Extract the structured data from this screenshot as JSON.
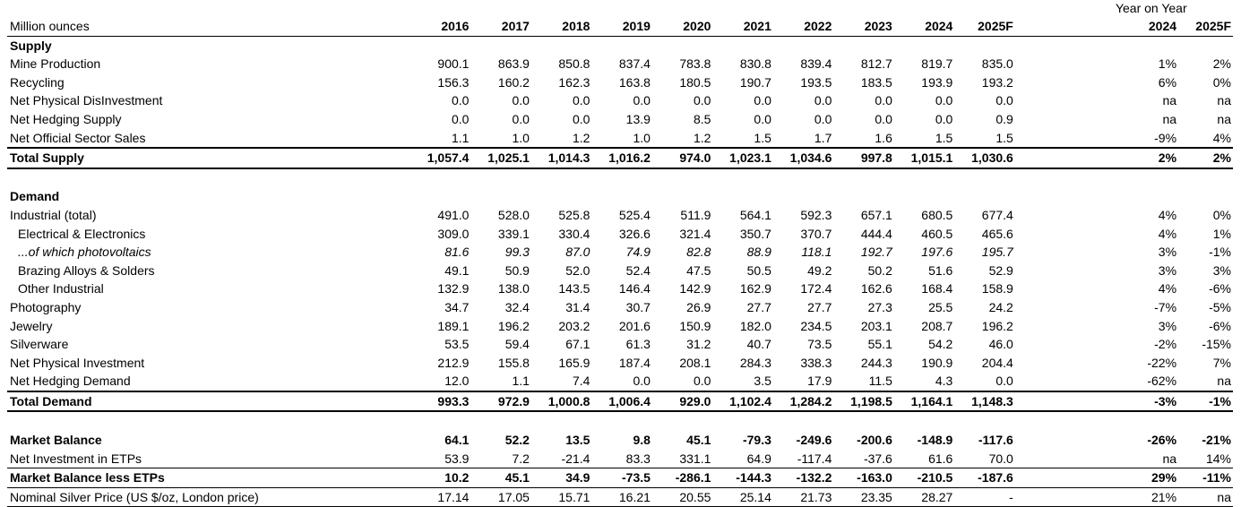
{
  "header": {
    "unit_label": "Million ounces",
    "yoy_label": "Year on Year",
    "years": [
      "2016",
      "2017",
      "2018",
      "2019",
      "2020",
      "2021",
      "2022",
      "2023",
      "2024",
      "2025F"
    ],
    "yoy_years": [
      "2024",
      "2025F"
    ]
  },
  "supply": {
    "section_label": "Supply",
    "rows": [
      {
        "label": "Mine Production",
        "values": [
          "900.1",
          "863.9",
          "850.8",
          "837.4",
          "783.8",
          "830.8",
          "839.4",
          "812.7",
          "819.7",
          "835.0"
        ],
        "yoy": [
          "1%",
          "2%"
        ]
      },
      {
        "label": "Recycling",
        "values": [
          "156.3",
          "160.2",
          "162.3",
          "163.8",
          "180.5",
          "190.7",
          "193.5",
          "183.5",
          "193.9",
          "193.2"
        ],
        "yoy": [
          "6%",
          "0%"
        ]
      },
      {
        "label": "Net Physical DisInvestment",
        "values": [
          "0.0",
          "0.0",
          "0.0",
          "0.0",
          "0.0",
          "0.0",
          "0.0",
          "0.0",
          "0.0",
          "0.0"
        ],
        "yoy": [
          "na",
          "na"
        ]
      },
      {
        "label": "Net Hedging Supply",
        "values": [
          "0.0",
          "0.0",
          "0.0",
          "13.9",
          "8.5",
          "0.0",
          "0.0",
          "0.0",
          "0.0",
          "0.9"
        ],
        "yoy": [
          "na",
          "na"
        ]
      },
      {
        "label": "Net Official Sector Sales",
        "values": [
          "1.1",
          "1.0",
          "1.2",
          "1.0",
          "1.2",
          "1.5",
          "1.7",
          "1.6",
          "1.5",
          "1.5"
        ],
        "yoy": [
          "-9%",
          "4%"
        ]
      }
    ],
    "total": {
      "label": "Total Supply",
      "values": [
        "1,057.4",
        "1,025.1",
        "1,014.3",
        "1,016.2",
        "974.0",
        "1,023.1",
        "1,034.6",
        "997.8",
        "1,015.1",
        "1,030.6"
      ],
      "yoy": [
        "2%",
        "2%"
      ]
    }
  },
  "demand": {
    "section_label": "Demand",
    "rows": [
      {
        "label": "Industrial (total)",
        "values": [
          "491.0",
          "528.0",
          "525.8",
          "525.4",
          "511.9",
          "564.1",
          "592.3",
          "657.1",
          "680.5",
          "677.4"
        ],
        "yoy": [
          "4%",
          "0%"
        ]
      },
      {
        "label": "Electrical & Electronics",
        "values": [
          "309.0",
          "339.1",
          "330.4",
          "326.6",
          "321.4",
          "350.7",
          "370.7",
          "444.4",
          "460.5",
          "465.6"
        ],
        "yoy": [
          "4%",
          "1%"
        ]
      },
      {
        "label": "...of which photovoltaics",
        "values": [
          "81.6",
          "99.3",
          "87.0",
          "74.9",
          "82.8",
          "88.9",
          "118.1",
          "192.7",
          "197.6",
          "195.7"
        ],
        "yoy": [
          "3%",
          "-1%"
        ]
      },
      {
        "label": "Brazing Alloys & Solders",
        "values": [
          "49.1",
          "50.9",
          "52.0",
          "52.4",
          "47.5",
          "50.5",
          "49.2",
          "50.2",
          "51.6",
          "52.9"
        ],
        "yoy": [
          "3%",
          "3%"
        ]
      },
      {
        "label": "Other Industrial",
        "values": [
          "132.9",
          "138.0",
          "143.5",
          "146.4",
          "142.9",
          "162.9",
          "172.4",
          "162.6",
          "168.4",
          "158.9"
        ],
        "yoy": [
          "4%",
          "-6%"
        ]
      },
      {
        "label": "Photography",
        "values": [
          "34.7",
          "32.4",
          "31.4",
          "30.7",
          "26.9",
          "27.7",
          "27.7",
          "27.3",
          "25.5",
          "24.2"
        ],
        "yoy": [
          "-7%",
          "-5%"
        ]
      },
      {
        "label": "Jewelry",
        "values": [
          "189.1",
          "196.2",
          "203.2",
          "201.6",
          "150.9",
          "182.0",
          "234.5",
          "203.1",
          "208.7",
          "196.2"
        ],
        "yoy": [
          "3%",
          "-6%"
        ]
      },
      {
        "label": "Silverware",
        "values": [
          "53.5",
          "59.4",
          "67.1",
          "61.3",
          "31.2",
          "40.7",
          "73.5",
          "55.1",
          "54.2",
          "46.0"
        ],
        "yoy": [
          "-2%",
          "-15%"
        ]
      },
      {
        "label": "Net Physical Investment",
        "values": [
          "212.9",
          "155.8",
          "165.9",
          "187.4",
          "208.1",
          "284.3",
          "338.3",
          "244.3",
          "190.9",
          "204.4"
        ],
        "yoy": [
          "-22%",
          "7%"
        ]
      },
      {
        "label": "Net Hedging Demand",
        "values": [
          "12.0",
          "1.1",
          "7.4",
          "0.0",
          "0.0",
          "3.5",
          "17.9",
          "11.5",
          "4.3",
          "0.0"
        ],
        "yoy": [
          "-62%",
          "na"
        ]
      }
    ],
    "total": {
      "label": "Total Demand",
      "values": [
        "993.3",
        "972.9",
        "1,000.8",
        "1,006.4",
        "929.0",
        "1,102.4",
        "1,284.2",
        "1,198.5",
        "1,164.1",
        "1,148.3"
      ],
      "yoy": [
        "-3%",
        "-1%"
      ]
    }
  },
  "balance": {
    "market_balance": {
      "label": "Market Balance",
      "values": [
        "64.1",
        "52.2",
        "13.5",
        "9.8",
        "45.1",
        "-79.3",
        "-249.6",
        "-200.6",
        "-148.9",
        "-117.6"
      ],
      "yoy": [
        "-26%",
        "-21%"
      ]
    },
    "net_etp": {
      "label": "Net Investment in ETPs",
      "values": [
        "53.9",
        "7.2",
        "-21.4",
        "83.3",
        "331.1",
        "64.9",
        "-117.4",
        "-37.6",
        "61.6",
        "70.0"
      ],
      "yoy": [
        "na",
        "14%"
      ]
    },
    "balance_less_etp": {
      "label": "Market Balance less ETPs",
      "values": [
        "10.2",
        "45.1",
        "34.9",
        "-73.5",
        "-286.1",
        "-144.3",
        "-132.2",
        "-163.0",
        "-210.5",
        "-187.6"
      ],
      "yoy": [
        "29%",
        "-11%"
      ]
    },
    "price": {
      "label": "Nominal Silver Price (US $/oz, London price)",
      "values": [
        "17.14",
        "17.05",
        "15.71",
        "16.21",
        "20.55",
        "25.14",
        "21.73",
        "23.35",
        "28.27",
        "-"
      ],
      "yoy": [
        "21%",
        "na"
      ]
    }
  }
}
